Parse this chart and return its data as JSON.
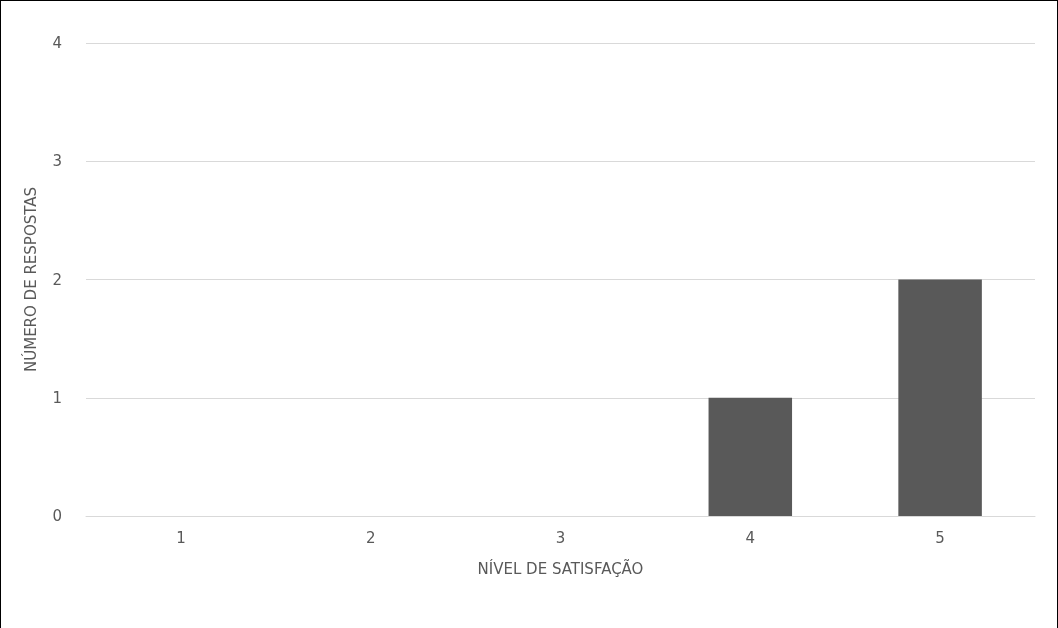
{
  "chart_data": {
    "type": "bar",
    "xlabel": "NÍVEL DE SATISFAÇÃO",
    "ylabel": "NÚMERO DE RESPOSTAS",
    "categories": [
      "1",
      "2",
      "3",
      "4",
      "5"
    ],
    "values": [
      0,
      0,
      0,
      1,
      2
    ],
    "color": "#595959",
    "ylim": [
      0,
      4
    ],
    "yticks": [
      0,
      1,
      2,
      3,
      4
    ],
    "grid": "y"
  }
}
